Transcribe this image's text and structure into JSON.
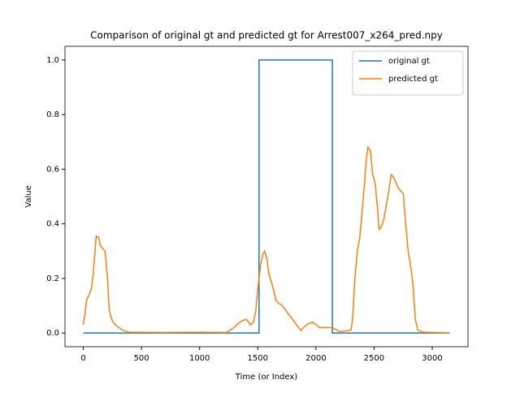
{
  "chart_data": {
    "type": "line",
    "title": "Comparison of original gt and predicted gt for Arrest007_x264_pred.npy",
    "x_label": "Time (or Index)",
    "y_label": "Value",
    "xlim": [
      -157.5,
      3307.5
    ],
    "ylim": [
      -0.05,
      1.05
    ],
    "xticks": [
      0,
      500,
      1000,
      1500,
      2000,
      2500,
      3000
    ],
    "yticks": [
      {
        "value": 0,
        "label": "0.0"
      },
      {
        "value": 0.2,
        "label": "0.2"
      },
      {
        "value": 0.4,
        "label": "0.4"
      },
      {
        "value": 0.6,
        "label": "0.6"
      },
      {
        "value": 0.8,
        "label": "0.8"
      },
      {
        "value": 1,
        "label": "1.0"
      }
    ],
    "legend": "upper right",
    "series": [
      {
        "name": "original gt",
        "color": "#1f77b4",
        "x": [
          0,
          1511,
          1511,
          2141,
          2141,
          3150
        ],
        "values": [
          0,
          0,
          1,
          1,
          0,
          0
        ]
      },
      {
        "name": "predicted gt",
        "color": "#ff7f0e",
        "x": [
          0,
          14,
          28,
          49,
          69,
          83,
          97,
          111,
          132,
          146,
          166,
          187,
          208,
          222,
          236,
          256,
          277,
          305,
          340,
          395,
          672,
          1019,
          1227,
          1261,
          1296,
          1331,
          1365,
          1400,
          1421,
          1441,
          1462,
          1483,
          1497,
          1511,
          1524,
          1545,
          1559,
          1580,
          1594,
          1615,
          1635,
          1656,
          1677,
          1712,
          1746,
          1781,
          1816,
          1850,
          1871,
          1892,
          1920,
          1968,
          2003,
          2031,
          2093,
          2141,
          2183,
          2197,
          2301,
          2315,
          2335,
          2356,
          2377,
          2398,
          2419,
          2432,
          2446,
          2467,
          2488,
          2509,
          2529,
          2543,
          2564,
          2585,
          2606,
          2626,
          2647,
          2668,
          2689,
          2710,
          2730,
          2751,
          2772,
          2793,
          2813,
          2834,
          2855,
          2876,
          2924,
          3150
        ],
        "values": [
          0.03,
          0.07,
          0.12,
          0.14,
          0.16,
          0.21,
          0.28,
          0.355,
          0.35,
          0.32,
          0.31,
          0.3,
          0.2,
          0.09,
          0.06,
          0.04,
          0.03,
          0.02,
          0.01,
          0.003,
          0.002,
          0.003,
          0.002,
          0.01,
          0.02,
          0.035,
          0.045,
          0.05,
          0.04,
          0.03,
          0.04,
          0.08,
          0.15,
          0.2,
          0.25,
          0.29,
          0.3,
          0.27,
          0.22,
          0.19,
          0.16,
          0.12,
          0.11,
          0.1,
          0.08,
          0.06,
          0.04,
          0.02,
          0.01,
          0.02,
          0.03,
          0.04,
          0.03,
          0.02,
          0.02,
          0.02,
          0.01,
          0.005,
          0.01,
          0.05,
          0.2,
          0.3,
          0.35,
          0.45,
          0.55,
          0.63,
          0.68,
          0.67,
          0.58,
          0.55,
          0.46,
          0.38,
          0.39,
          0.42,
          0.47,
          0.52,
          0.58,
          0.57,
          0.55,
          0.53,
          0.52,
          0.51,
          0.4,
          0.3,
          0.25,
          0.18,
          0.05,
          0.01,
          0.003,
          0
        ]
      }
    ]
  }
}
